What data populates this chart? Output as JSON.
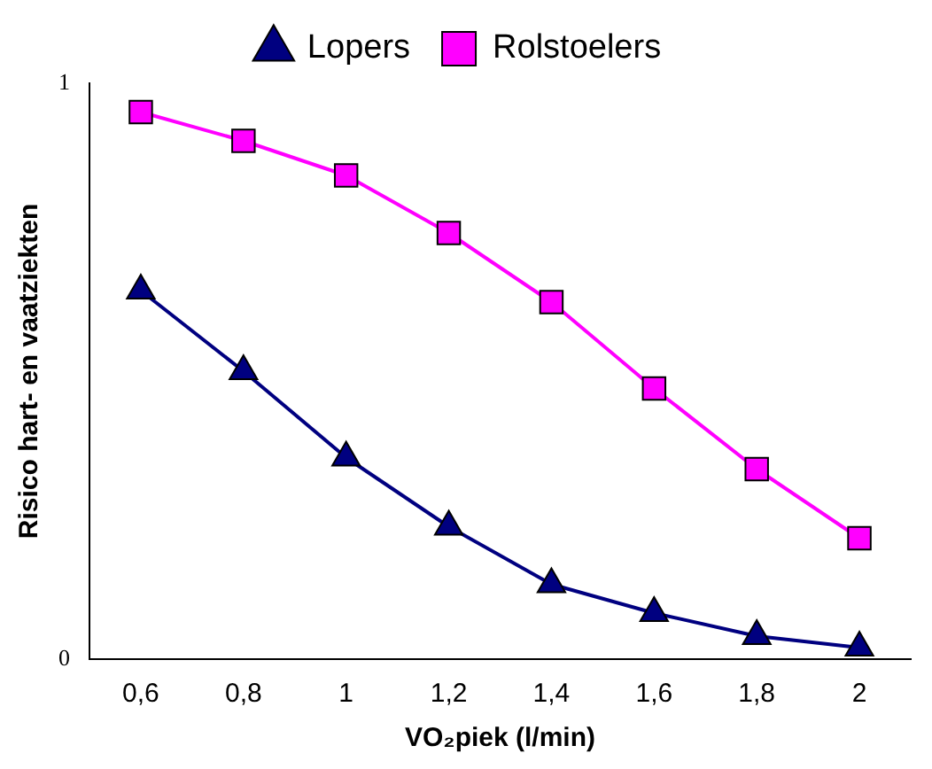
{
  "chart_data": {
    "type": "line",
    "xlabel": "VO₂piek (l/min)",
    "ylabel": "Risico hart- en vaatziekten",
    "categories": [
      "0,6",
      "0,8",
      "1",
      "1,2",
      "1,4",
      "1,6",
      "1,8",
      "2"
    ],
    "series": [
      {
        "name": "Lopers",
        "color": "#000080",
        "marker": "triangle",
        "values": [
          0.64,
          0.5,
          0.35,
          0.23,
          0.13,
          0.08,
          0.04,
          0.02
        ]
      },
      {
        "name": "Rolstoelers",
        "color": "#ff00ff",
        "marker": "square",
        "values": [
          0.95,
          0.9,
          0.84,
          0.74,
          0.62,
          0.47,
          0.33,
          0.21
        ]
      }
    ],
    "ylim": [
      0,
      1
    ],
    "yticks": [
      0,
      1
    ],
    "grid": false,
    "legend": "top",
    "line_style": "solid"
  }
}
